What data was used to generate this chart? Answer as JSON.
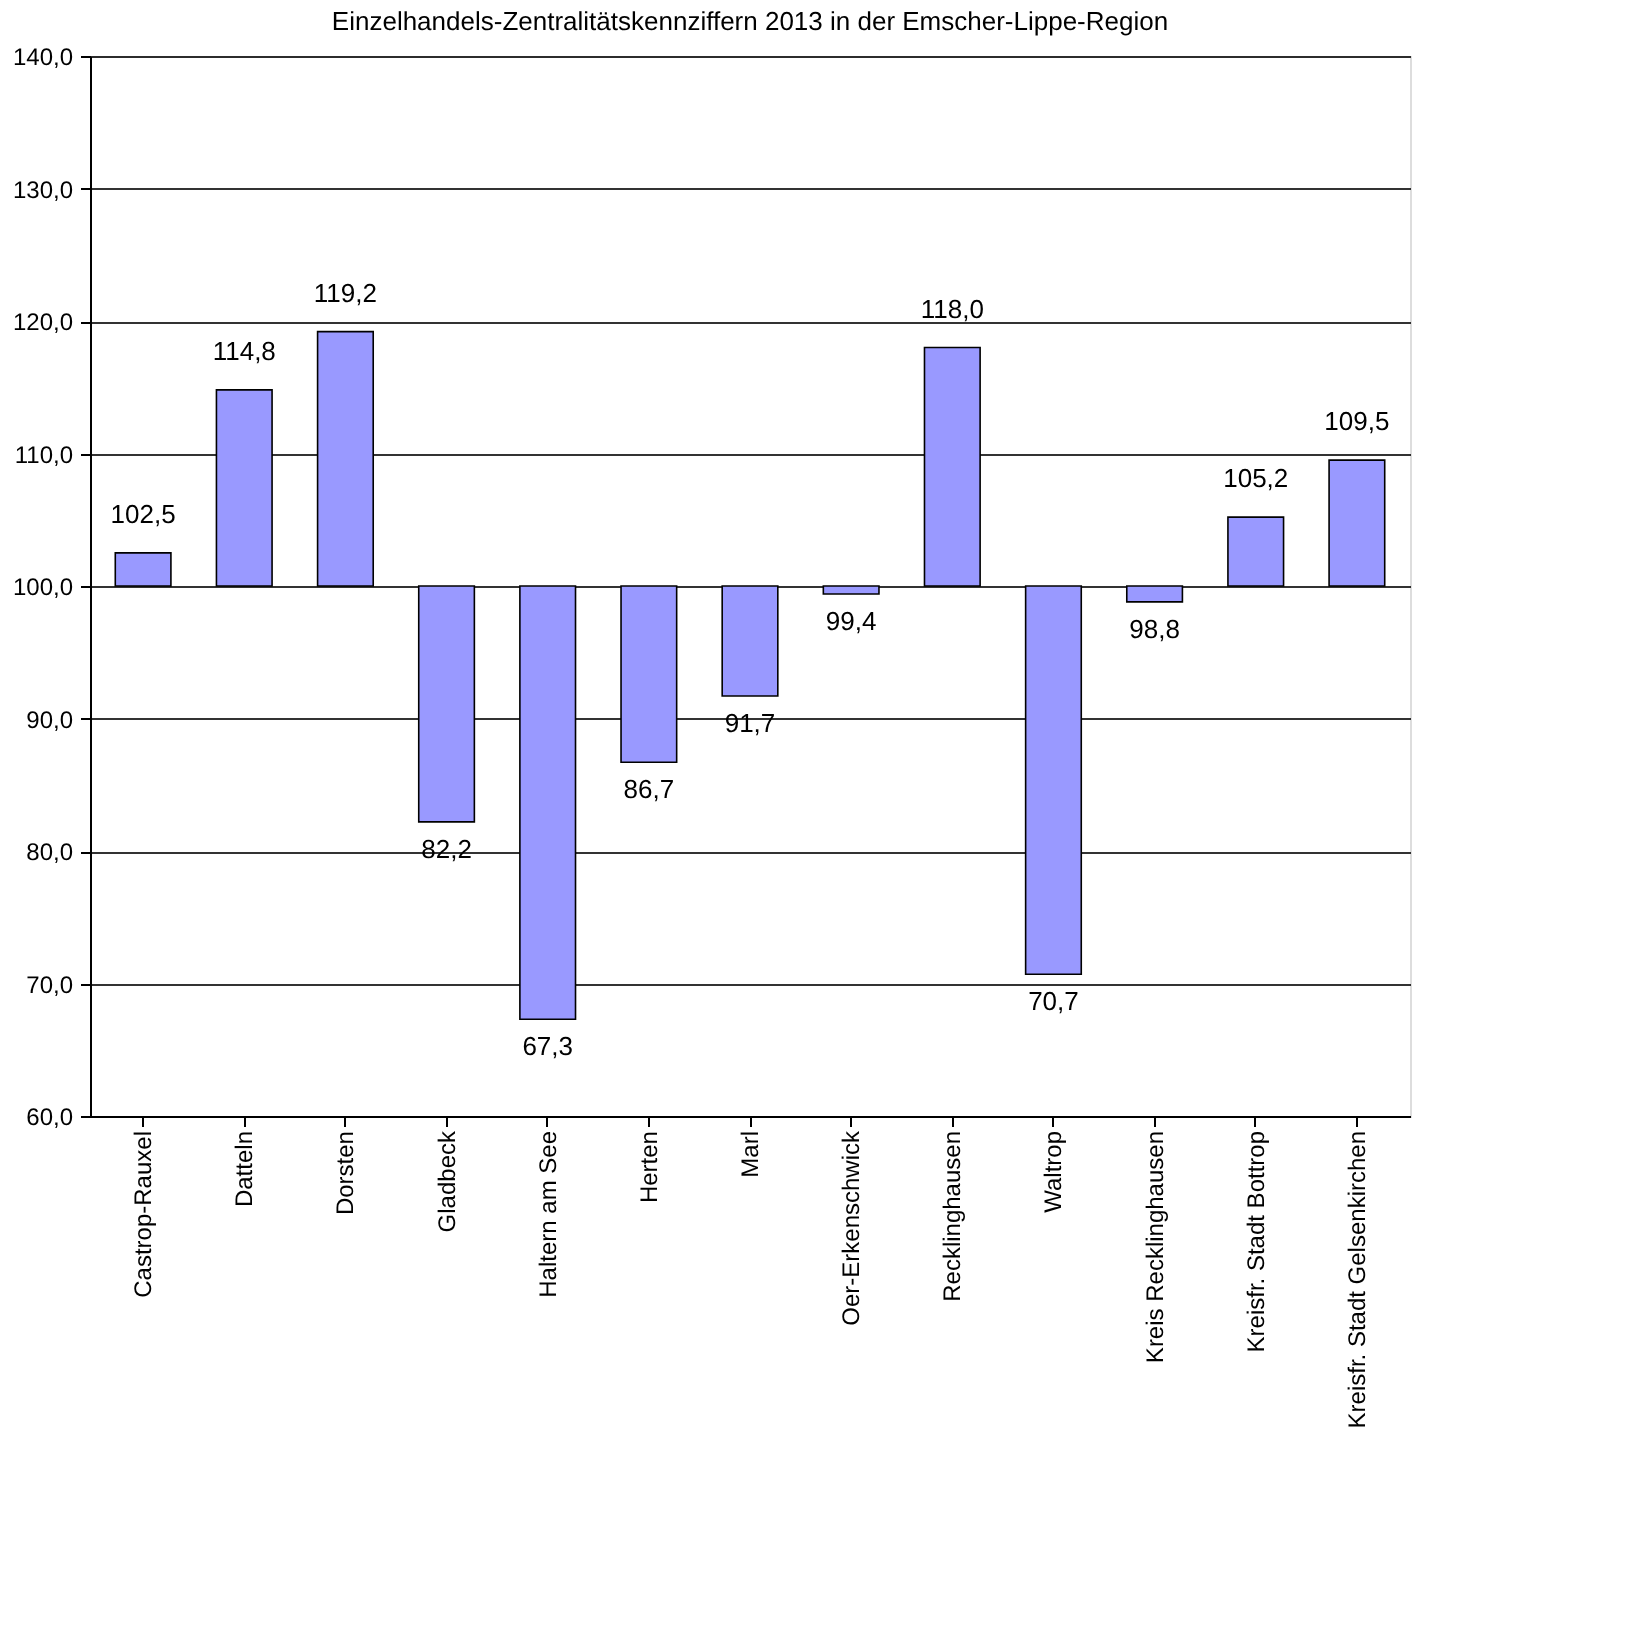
{
  "chart_data": {
    "type": "bar",
    "title": "Einzelhandels-Zentralitätskennziffern 2013 in der Emscher-Lippe-Region",
    "categories": [
      "Castrop-Rauxel",
      "Datteln",
      "Dorsten",
      "Gladbeck",
      "Haltern am See",
      "Herten",
      "Marl",
      "Oer-Erkenschwick",
      "Recklinghausen",
      "Waltrop",
      "Kreis Recklinghausen",
      "Kreisfr. Stadt Bottrop",
      "Kreisfr. Stadt Gelsenkirchen"
    ],
    "base": [
      100,
      100,
      100,
      100,
      100,
      100,
      100,
      100,
      100,
      100,
      100,
      100,
      100
    ],
    "values": [
      2.5,
      14.8,
      19.2,
      -17.8,
      -32.7,
      -13.3,
      -8.3,
      -0.6,
      18.0,
      -29.3,
      -1.2,
      5.2,
      9.5
    ],
    "value_labels": [
      "102,5",
      "114,8",
      "119,2",
      "82,2",
      "67,3",
      "86,7",
      "91,7",
      "99,4",
      "118,0",
      "70,7",
      "98,8",
      "105,2",
      "109,5"
    ],
    "color": "#9999ff",
    "ylim": [
      60,
      140
    ],
    "yticks": [
      {
        "value": 60,
        "label": "60,0"
      },
      {
        "value": 70,
        "label": "70,0"
      },
      {
        "value": 80,
        "label": "80,0"
      },
      {
        "value": 90,
        "label": "90,0"
      },
      {
        "value": 100,
        "label": "100,0"
      },
      {
        "value": 110,
        "label": "110,0"
      },
      {
        "value": 120,
        "label": "120,0"
      },
      {
        "value": 130,
        "label": "130,0"
      },
      {
        "value": 140,
        "label": "140,0"
      }
    ],
    "grid": "y"
  }
}
